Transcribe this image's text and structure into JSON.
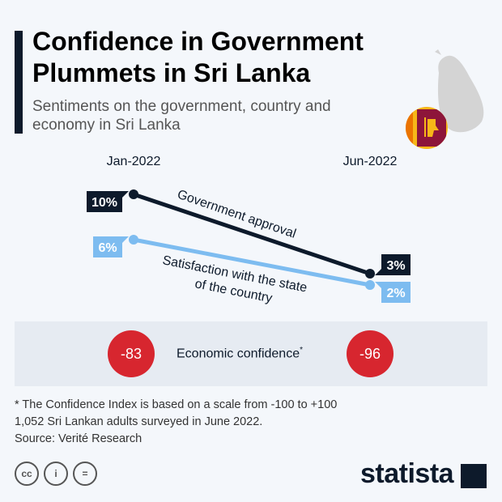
{
  "header": {
    "title": "Confidence in Government Plummets in Sri Lanka",
    "subtitle": "Sentiments on the government, country and economy in Sri Lanka"
  },
  "chart_data": {
    "type": "line",
    "title": "Confidence in Government Plummets in Sri Lanka",
    "categories": [
      "Jan-2022",
      "Jun-2022"
    ],
    "series": [
      {
        "name": "Government approval",
        "values": [
          10,
          3
        ],
        "labels": [
          "10%",
          "3%"
        ],
        "color": "#0d1a2b"
      },
      {
        "name": "Satisfaction with the state of the country",
        "name_lines": [
          "Satisfaction with the state",
          "of the country"
        ],
        "values": [
          6,
          2
        ],
        "labels": [
          "6%",
          "2%"
        ],
        "color": "#7dbcf0"
      }
    ],
    "economic_confidence": {
      "label": "Economic confidence",
      "footnote_mark": "*",
      "values": [
        -83,
        -96
      ],
      "labels": [
        "-83",
        "-96"
      ],
      "color": "#d7262f"
    }
  },
  "footer": {
    "notes": [
      "* The Confidence Index is based on a scale from -100 to +100",
      "1,052 Sri Lankan adults surveyed in June 2022.",
      "Source: Verité Research"
    ],
    "license_icons": [
      "cc",
      "by",
      "nd"
    ],
    "brand": "statista"
  }
}
